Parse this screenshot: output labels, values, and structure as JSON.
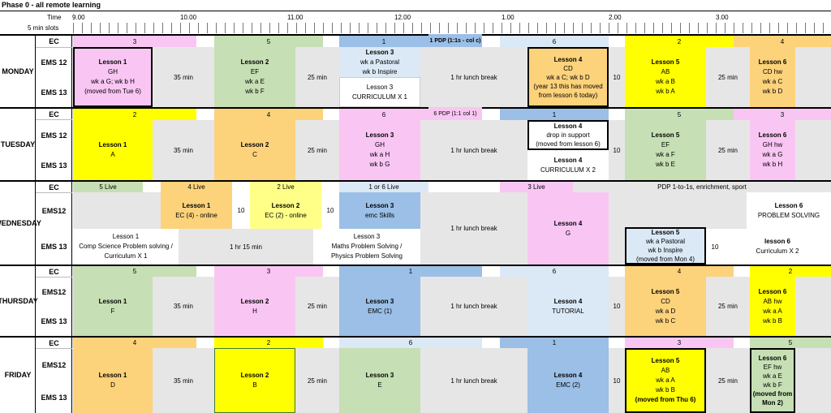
{
  "title": "Phase 0 - all remote learning",
  "header": {
    "time_label": "Time",
    "slots_label": "5 min slots",
    "times": [
      "9.00",
      "10.00",
      "11.00",
      "12.00",
      "1.00",
      "2.00",
      "3.00"
    ]
  },
  "colors": {
    "pink": "#f9c6f3",
    "green": "#c6dfb4",
    "blue": "#9bbfe6",
    "lightblue": "#dbe9f6",
    "orange": "#fcd27b",
    "yellow": "#ffff00",
    "grey": "#e7e6e6",
    "white": "#ffffff"
  },
  "rows": {
    "ec": "EC",
    "ems12": "EMS 12",
    "ems13": "EMS 13",
    "ems12b": "EMS12"
  },
  "days": {
    "monday": {
      "name": "MONDAY",
      "ec": [
        "3",
        "5",
        "1",
        "1 PDP (1:1s - col c)",
        "6",
        "2",
        "4"
      ],
      "l1": [
        "Lesson 1",
        "GH",
        "wk a G; wk b H",
        "(moved from Tue 6)"
      ],
      "gap1": "35 min",
      "l2": [
        "Lesson 2",
        "EF",
        "wk a E",
        "wk b F"
      ],
      "gap2": "25 min",
      "l3a": [
        "Lesson 3",
        "wk a Pastoral",
        "wk b Inspire"
      ],
      "l3b": [
        "Lesson 3",
        "CURRICULUM X 1"
      ],
      "lunch": "1 hr lunch break",
      "l4": [
        "Lesson 4",
        "CD",
        "wk a C; wk b D",
        "(year 13 this has moved from lesson 6 today)"
      ],
      "gap3": "10",
      "l5": [
        "Lesson 5",
        "AB",
        "wk a B",
        "wk b A"
      ],
      "gap4": "25 min",
      "l6": [
        "Lesson 6",
        "CD hw",
        "wk a C",
        "wk b D"
      ]
    },
    "tuesday": {
      "name": "TUESDAY",
      "ec": [
        "2",
        "4",
        "6",
        "6 PDP (1:1 col 1)",
        "1",
        "5",
        "3"
      ],
      "l1": [
        "Lesson 1",
        "A"
      ],
      "gap1": "35 min",
      "l2": [
        "Lesson 2",
        "C"
      ],
      "gap2": "25 min",
      "l3": [
        "Lesson 3",
        "GH",
        "wk a H",
        "wk b G"
      ],
      "lunch": "1 hr lunch break",
      "l4a": [
        "Lesson 4",
        "drop in support",
        "(moved from lesson 6)"
      ],
      "l4b": [
        "Lesson 4",
        "CURRICULUM X 2"
      ],
      "gap3": "10",
      "l5": [
        "Lesson 5",
        "EF",
        "wk a F",
        "wk b E"
      ],
      "gap4": "25 min",
      "l6": [
        "Lesson 6",
        "GH hw",
        "wk a G",
        "wk b H"
      ]
    },
    "wednesday": {
      "name": "WEDNESDAY",
      "ec": [
        "5 Live",
        "4 Live",
        "2 Live",
        "1 or 6 Live",
        "3 Live",
        "PDP 1-to-1s, enrichment, sport"
      ],
      "l1a": [
        "Lesson 1",
        "EC (4) - online"
      ],
      "g10a": "10",
      "l2a": [
        "Lesson 2",
        "EC (2) - online"
      ],
      "g10b": "10",
      "l3a": [
        "Lesson 3",
        "emc Skills"
      ],
      "l1b": [
        "Lesson 1",
        "Comp Science Problem solving /",
        "Curriculum X 1"
      ],
      "gapb": "1 hr 15 min",
      "l3b": [
        "Lesson 3",
        "Maths Problem Solving /",
        "Physics Problem Solving"
      ],
      "lunch": "1 hr lunch break",
      "l4": [
        "Lesson 4",
        "G"
      ],
      "l5": [
        "Lesson 5",
        "wk a Pastoral",
        "wk b Inspire",
        "(moved from Mon 4)"
      ],
      "g10c": "10",
      "l6a": [
        "Lesson 6",
        "PROBLEM SOLVING"
      ],
      "l6b": [
        "lesson 6",
        "Curriculum X 2"
      ]
    },
    "thursday": {
      "name": "THURSDAY",
      "ec": [
        "5",
        "3",
        "1",
        "6",
        "4",
        "2"
      ],
      "l1": [
        "Lesson 1",
        "F"
      ],
      "gap1": "35 min",
      "l2": [
        "Lesson 2",
        "H"
      ],
      "gap2": "25 min",
      "l3": [
        "Lesson 3",
        "EMC (1)"
      ],
      "lunch": "1 hr lunch break",
      "l4": [
        "Lesson 4",
        "TUTORIAL"
      ],
      "gap3": "10",
      "l5": [
        "Lesson 5",
        "CD",
        "wk a D",
        "wk b C"
      ],
      "gap4": "25 min",
      "l6": [
        "Lesson 6",
        "AB hw",
        "wk a A",
        "wk b B"
      ]
    },
    "friday": {
      "name": "FRIDAY",
      "ec": [
        "4",
        "2",
        "6",
        "1",
        "3",
        "5"
      ],
      "l1": [
        "Lesson 1",
        "D"
      ],
      "gap1": "35 min",
      "l2": [
        "Lesson 2",
        "B"
      ],
      "gap2": "25 min",
      "l3": [
        "Lesson 3",
        "E"
      ],
      "lunch": "1 hr lunch break",
      "l4": [
        "Lesson 4",
        "EMC (2)"
      ],
      "gap3": "10",
      "l5": [
        "Lesson 5",
        "AB",
        "wk a A",
        "wk b B",
        "(moved from Thu 6)"
      ],
      "gap4": "25 min",
      "l6": [
        "Lesson 6",
        "EF hw",
        "wk a E",
        "wk b F",
        "(moved from Mon 2)"
      ]
    }
  }
}
